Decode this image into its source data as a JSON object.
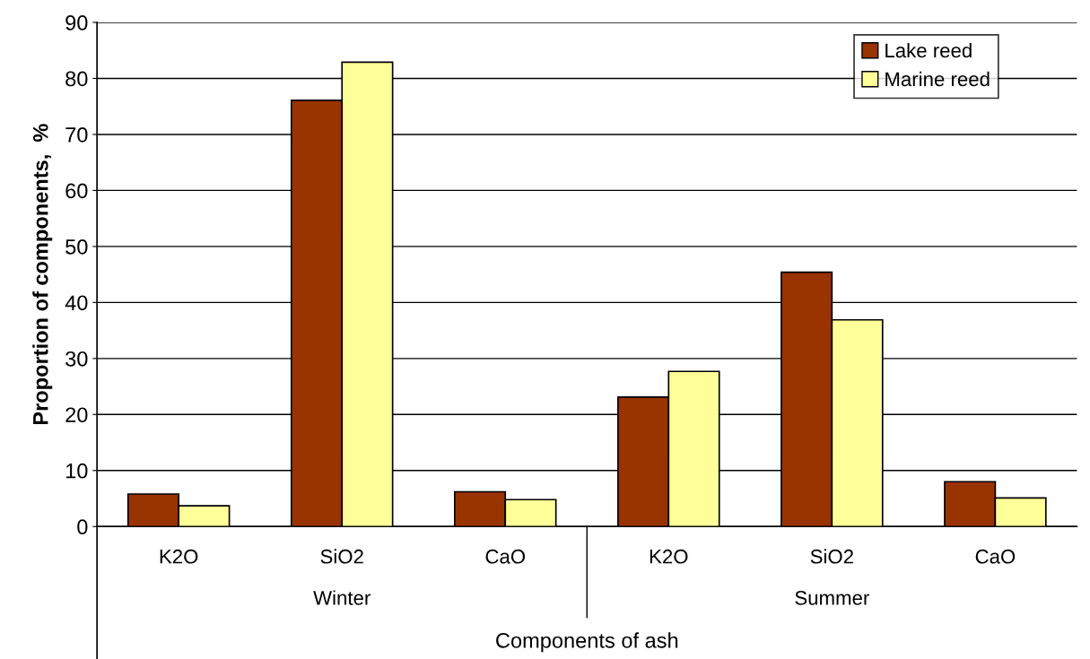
{
  "chart_data": {
    "type": "bar",
    "xlabel": "Components of ash",
    "ylabel": "Proportion of components,  %",
    "categories": [
      "K2O",
      "SiO2",
      "CaO",
      "K2O",
      "SiO2",
      "CaO"
    ],
    "series": [
      {
        "name": "Lake reed",
        "color": "#993300",
        "values": [
          5.8,
          76.1,
          6.2,
          23.1,
          45.4,
          8.0
        ]
      },
      {
        "name": "Marine reed",
        "color": "#ffff99",
        "values": [
          3.7,
          82.9,
          4.8,
          27.7,
          36.9,
          5.1
        ]
      }
    ],
    "annotations": [
      "Winter",
      "Summer"
    ],
    "ylim": [
      0,
      90
    ],
    "yticks": [
      0,
      10,
      20,
      30,
      40,
      50,
      60,
      70,
      80,
      90
    ],
    "grid": "y",
    "legend": "top right"
  }
}
